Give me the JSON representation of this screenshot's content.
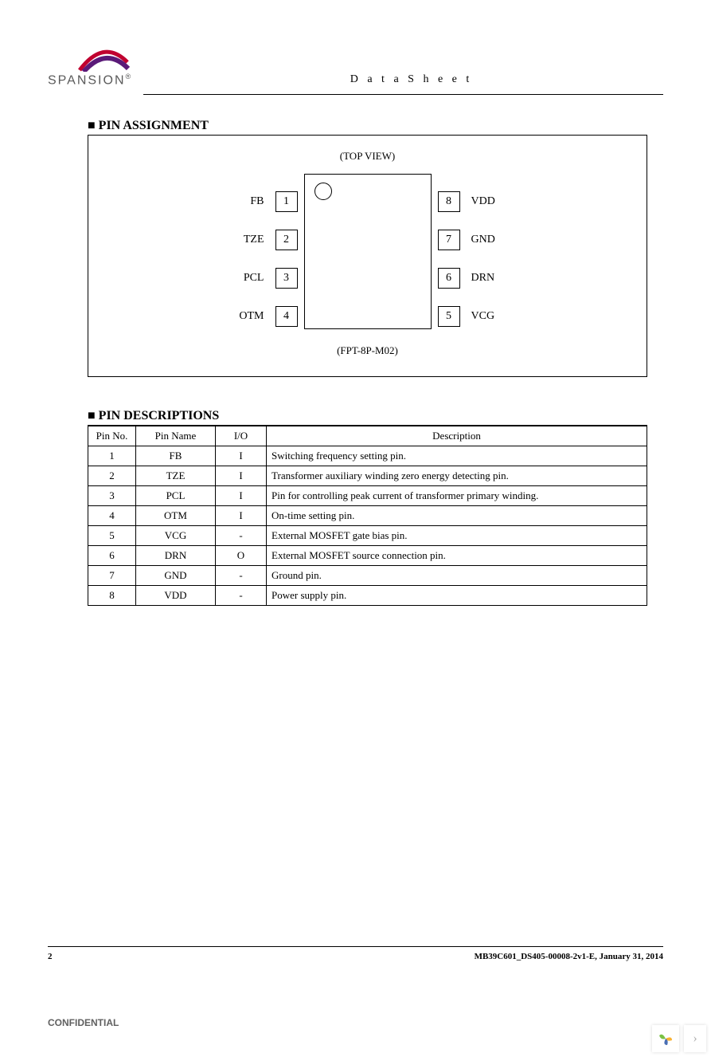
{
  "header": {
    "brand": "SPANSION",
    "doc_label": "D a t a S h e e t",
    "logo_color_top": "#c00030",
    "logo_color_bottom": "#5a1a78"
  },
  "sections": {
    "pin_assignment_title": "■ PIN ASSIGNMENT",
    "pin_descriptions_title": "■ PIN DESCRIPTIONS"
  },
  "pin_assignment": {
    "top_label": "(TOP VIEW)",
    "bottom_label": "(FPT-8P-M02)",
    "left_pins": [
      {
        "label": "FB",
        "num": "1"
      },
      {
        "label": "TZE",
        "num": "2"
      },
      {
        "label": "PCL",
        "num": "3"
      },
      {
        "label": "OTM",
        "num": "4"
      }
    ],
    "right_pins": [
      {
        "label": "VDD",
        "num": "8"
      },
      {
        "label": "GND",
        "num": "7"
      },
      {
        "label": "DRN",
        "num": "6"
      },
      {
        "label": "VCG",
        "num": "5"
      }
    ]
  },
  "pin_table": {
    "columns": [
      "Pin No.",
      "Pin Name",
      "I/O",
      "Description"
    ],
    "rows": [
      {
        "no": "1",
        "name": "FB",
        "io": "I",
        "desc": "Switching frequency setting pin."
      },
      {
        "no": "2",
        "name": "TZE",
        "io": "I",
        "desc": "Transformer auxiliary winding zero energy detecting pin."
      },
      {
        "no": "3",
        "name": "PCL",
        "io": "I",
        "desc": "Pin for controlling peak current of transformer primary winding."
      },
      {
        "no": "4",
        "name": "OTM",
        "io": "I",
        "desc": "On-time setting pin."
      },
      {
        "no": "5",
        "name": "VCG",
        "io": "-",
        "desc": "External MOSFET gate bias pin."
      },
      {
        "no": "6",
        "name": "DRN",
        "io": "O",
        "desc": "External MOSFET source connection pin."
      },
      {
        "no": "7",
        "name": "GND",
        "io": "-",
        "desc": "Ground pin."
      },
      {
        "no": "8",
        "name": "VDD",
        "io": "-",
        "desc": "Power supply pin."
      }
    ]
  },
  "footer": {
    "page_no": "2",
    "doc_id": "MB39C601_DS405-00008-2v1-E, January 31, 2014",
    "confidential": "CONFIDENTIAL"
  },
  "nav": {
    "arrow": "›"
  }
}
